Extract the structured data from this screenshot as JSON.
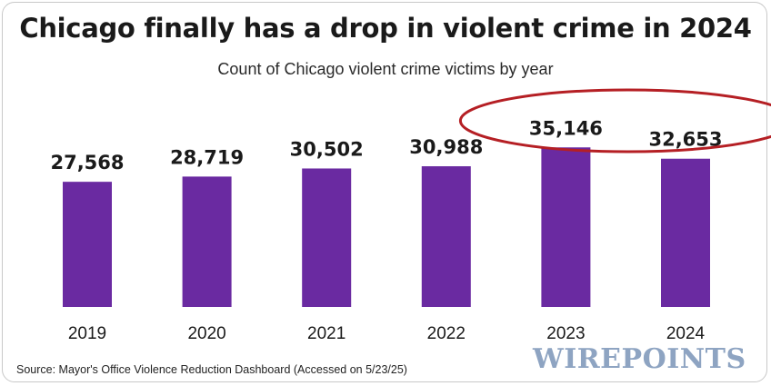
{
  "chart_data": {
    "type": "bar",
    "title": "Chicago finally has a drop in violent crime in 2024",
    "subtitle": "Count of Chicago violent crime victims by year",
    "categories": [
      "2019",
      "2020",
      "2021",
      "2022",
      "2023",
      "2024"
    ],
    "values": [
      27568,
      28719,
      30502,
      30988,
      35146,
      32653
    ],
    "value_labels": [
      "27,568",
      "28,719",
      "30,502",
      "30,988",
      "35,146",
      "32,653"
    ],
    "ylim": [
      0,
      40000
    ],
    "grid": false,
    "bar_color": "#6a2aa1",
    "annotation": {
      "type": "ellipse",
      "highlights": [
        "2023",
        "2024"
      ],
      "color": "#b51f24"
    }
  },
  "source": "Source: Mayor's Office Violence Reduction Dashboard (Accessed on 5/23/25)",
  "logo": "WIREPOINTS"
}
